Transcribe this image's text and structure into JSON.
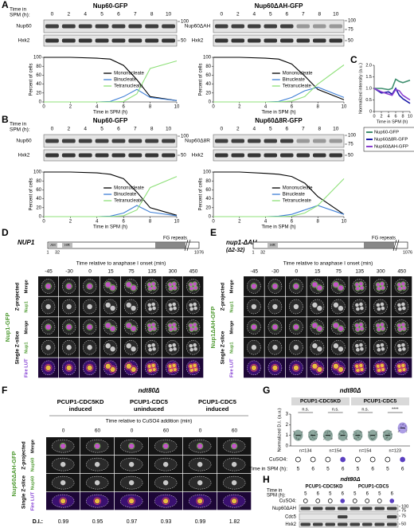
{
  "panels": {
    "A": {
      "label": "A",
      "time_label": [
        "Time in",
        "SPM (h):"
      ],
      "blots": [
        {
          "title": "Nup60-GFP",
          "times": [
            "0",
            "2",
            "4",
            "5",
            "6",
            "7",
            "8",
            "10"
          ],
          "rows": [
            "Nup60",
            "Hxk2"
          ],
          "markers": [
            "100",
            "50"
          ]
        },
        {
          "title": "Nup60ΔAH-GFP",
          "times": [
            "0",
            "2",
            "4",
            "5",
            "6",
            "7",
            "8",
            "10"
          ],
          "rows": [
            "Nup60ΔAH",
            "Hxk2"
          ],
          "markers": [
            "100",
            "75",
            "50"
          ]
        }
      ]
    },
    "B": {
      "label": "B",
      "time_label": [
        "Time in",
        "SPM (h):"
      ],
      "blots": [
        {
          "title": "Nup60-GFP",
          "times": [
            "0",
            "2",
            "4",
            "5",
            "6",
            "7",
            "8",
            "10"
          ],
          "rows": [
            "Nup60",
            "Hxk2"
          ],
          "markers": [
            "100",
            "50"
          ]
        },
        {
          "title": "Nup60Δ8R-GFP",
          "times": [
            "0",
            "2",
            "4",
            "5",
            "6",
            "7",
            "8",
            "10"
          ],
          "rows": [
            "Nup60Δ8R",
            "Hxk2"
          ],
          "markers": [
            "100",
            "75",
            "50"
          ]
        }
      ]
    },
    "C": {
      "label": "C"
    },
    "D": {
      "label": "D",
      "gene": "NUP1",
      "domains": [
        "AH",
        "HR"
      ],
      "fg": "FG repeats",
      "positions": [
        "1",
        "32",
        "1076"
      ],
      "time_axis": "Time relative to anaphase I onset (min)",
      "times": [
        "-45",
        "-30",
        "0",
        "15",
        "75",
        "135",
        "300",
        "450"
      ],
      "protein": "Nup1-GFP",
      "groups": [
        "Z-projected",
        "Single Z-slice"
      ],
      "channels": [
        "Merge",
        "Nup1",
        "Merge",
        "Nup1",
        "Fire LUT"
      ]
    },
    "E": {
      "label": "E",
      "gene": "nup1-ΔAH",
      "deletion": "(Δ2-32)",
      "domains": [
        "HR"
      ],
      "fg": "FG repeats",
      "positions": [
        "1",
        "32",
        "1076"
      ],
      "time_axis": "Time relative to anaphase I onset (min)",
      "times": [
        "-45",
        "-30",
        "0",
        "15",
        "75",
        "135",
        "300",
        "450"
      ],
      "protein": "Nup1ΔAH-GFP",
      "groups": [
        "Z-projected",
        "Single Z-slice"
      ],
      "channels": [
        "Merge",
        "Nup1",
        "Merge",
        "Nup1",
        "Fire LUT"
      ]
    },
    "F": {
      "label": "F",
      "strain": "ndt80Δ",
      "conditions": [
        [
          "PCUP1-CDC5KD",
          "induced"
        ],
        [
          "PCUP1-CDC5",
          "uninduced"
        ],
        [
          "PCUP1-CDC5",
          "induced"
        ]
      ],
      "time_axis": "Time relative to CuSO4 addition (min)",
      "times": [
        "0",
        "60",
        "0",
        "60",
        "0",
        "60"
      ],
      "protein": "Nup60ΔAH-GFP",
      "groups": [
        "Z-projected",
        "Single Z-slice"
      ],
      "channels": [
        "Merge",
        "Nup60",
        "Nup60",
        "Fire LUT"
      ],
      "di_label": "D.I.:",
      "di": [
        "0.99",
        "0.95",
        "0.97",
        "0.93",
        "0.99",
        "1.82"
      ]
    },
    "G": {
      "label": "G",
      "strain": "ndt80Δ",
      "groups": [
        "PCUP1-CDC5KD",
        "PCUP1-CDC5"
      ],
      "significance": [
        "n.s.",
        "n.s.",
        "n.s.",
        "****"
      ],
      "n": [
        "n=134",
        "n=154",
        "n=154",
        "n=123"
      ],
      "cuso4_label": "CuSO4:",
      "cuso4": [
        false,
        false,
        false,
        true,
        false,
        false,
        false,
        true
      ],
      "time_label": "Time in SPM (h):",
      "times": [
        "5",
        "6",
        "5",
        "6",
        "5",
        "6",
        "5",
        "6"
      ]
    },
    "H": {
      "label": "H",
      "strain": "ndt80Δ",
      "groups": [
        "PCUP1-CDC5KD",
        "PCUP1-CDC5"
      ],
      "time_label": [
        "Time in",
        "SPM (h):"
      ],
      "times": [
        "5",
        "6",
        "5",
        "6",
        "5",
        "6",
        "5",
        "6"
      ],
      "cuso4_label": "CuSO4:",
      "cuso4": [
        false,
        false,
        false,
        true,
        false,
        false,
        false,
        true
      ],
      "rows": [
        "Nup60ΔAH",
        "Cdc5",
        "Hxk2"
      ],
      "markers": [
        "100",
        "75",
        "75",
        "50"
      ]
    }
  },
  "chart_data": [
    {
      "type": "line",
      "x": [
        0,
        2,
        4,
        5,
        6,
        7,
        8,
        10
      ],
      "xlim": [
        0,
        10
      ],
      "xticks": [
        0,
        2,
        4,
        6,
        8,
        10
      ],
      "ylim": [
        0,
        100
      ],
      "yticks": [
        0,
        20,
        40,
        60,
        80,
        100
      ],
      "xlabel": "Time in SPM (h)",
      "ylabel": "Percent of cells",
      "series": [
        {
          "name": "Mononucleate",
          "color": "#000000",
          "values": [
            100,
            100,
            98,
            96,
            82,
            50,
            12,
            3
          ]
        },
        {
          "name": "Binucleate",
          "color": "#3f7fd6",
          "values": [
            0,
            0,
            0,
            1,
            12,
            28,
            10,
            3
          ]
        },
        {
          "name": "Tetranucleate",
          "color": "#8fe07a",
          "values": [
            0,
            0,
            0,
            0,
            1,
            18,
            75,
            92
          ]
        }
      ]
    },
    {
      "type": "line",
      "x": [
        0,
        2,
        4,
        5,
        6,
        7,
        8,
        10
      ],
      "xlim": [
        0,
        10
      ],
      "xticks": [
        0,
        2,
        4,
        6,
        8,
        10
      ],
      "ylim": [
        0,
        100
      ],
      "yticks": [
        0,
        20,
        40,
        60,
        80,
        100
      ],
      "xlabel": "Time in SPM (h)",
      "ylabel": "Percent of cells",
      "series": [
        {
          "name": "Mononucleate",
          "color": "#000000",
          "values": [
            100,
            100,
            98,
            96,
            85,
            58,
            28,
            5
          ]
        },
        {
          "name": "Binucleate",
          "color": "#3f7fd6",
          "values": [
            0,
            0,
            0,
            1,
            10,
            25,
            33,
            10
          ]
        },
        {
          "name": "Tetranucleate",
          "color": "#8fe07a",
          "values": [
            0,
            0,
            0,
            0,
            2,
            12,
            40,
            83
          ]
        }
      ]
    },
    {
      "type": "line",
      "x": [
        0,
        2,
        4,
        5,
        6,
        7,
        8,
        10
      ],
      "xlim": [
        0,
        10
      ],
      "xticks": [
        0,
        2,
        4,
        6,
        8,
        10
      ],
      "ylim": [
        0,
        100
      ],
      "yticks": [
        0,
        20,
        40,
        60,
        80,
        100
      ],
      "xlabel": "Time in SPM (h)",
      "ylabel": "Percent of cells",
      "series": [
        {
          "name": "Mononucleate",
          "color": "#000000",
          "values": [
            100,
            100,
            98,
            95,
            85,
            55,
            20,
            3
          ]
        },
        {
          "name": "Binucleate",
          "color": "#3f7fd6",
          "values": [
            0,
            0,
            0,
            1,
            8,
            25,
            10,
            2
          ]
        },
        {
          "name": "Tetranucleate",
          "color": "#8fe07a",
          "values": [
            0,
            0,
            0,
            0,
            2,
            15,
            65,
            90
          ]
        }
      ]
    },
    {
      "type": "line",
      "x": [
        0,
        2,
        4,
        5,
        6,
        7,
        8,
        10
      ],
      "xlim": [
        0,
        10
      ],
      "xticks": [
        0,
        2,
        4,
        6,
        8,
        10
      ],
      "ylim": [
        0,
        100
      ],
      "yticks": [
        0,
        20,
        40,
        60,
        80,
        100
      ],
      "xlabel": "Time in SPM (h)",
      "ylabel": "Percent of cells",
      "series": [
        {
          "name": "Mononucleate",
          "color": "#000000",
          "values": [
            100,
            100,
            97,
            95,
            90,
            75,
            45,
            5
          ]
        },
        {
          "name": "Binucleate",
          "color": "#3f7fd6",
          "values": [
            0,
            0,
            0,
            1,
            5,
            15,
            25,
            5
          ]
        },
        {
          "name": "Tetranucleate",
          "color": "#8fe07a",
          "values": [
            0,
            0,
            0,
            0,
            1,
            8,
            25,
            85
          ]
        }
      ]
    },
    {
      "type": "line",
      "x": [
        0,
        2,
        4,
        5,
        6,
        7,
        8,
        10
      ],
      "xlim": [
        0,
        10
      ],
      "xticks": [
        0,
        2,
        4,
        6,
        8,
        10
      ],
      "ylim": [
        0,
        2
      ],
      "yticks": [
        0,
        0.5,
        {
          "value": 1,
          "label": "1.0"
        },
        1.5,
        {
          "value": 2,
          "label": "2.0"
        }
      ],
      "xlabel": "Time in SPM (h)",
      "ylabel": "Normalized intensity (a.u.)",
      "legend": "below",
      "series": [
        {
          "name": "Nup60-GFP",
          "color": "#3f8f6f",
          "values": [
            1.0,
            1.0,
            0.95,
            1.0,
            1.4,
            1.3,
            1.25,
            1.35
          ]
        },
        {
          "name": "Nup60Δ8R-GFP",
          "color": "#1a1aa8",
          "values": [
            1.0,
            0.8,
            0.85,
            0.75,
            1.0,
            0.7,
            0.55,
            0.35
          ]
        },
        {
          "name": "Nup60ΔAH-GFP",
          "color": "#8a3fd0",
          "values": [
            1.0,
            0.85,
            0.75,
            0.7,
            0.95,
            0.9,
            0.7,
            0.5
          ]
        }
      ]
    },
    {
      "type": "strip",
      "values": [
        1.0,
        1.0,
        1.0,
        1.0,
        1.0,
        1.0,
        1.0,
        1.7
      ],
      "ylim": [
        0,
        3
      ],
      "yticks": [
        0,
        1,
        2,
        3
      ],
      "ylabel": "Normalized D.I. (a.u.)",
      "color": "#2f5f4f",
      "highlight": "#6a4fd0"
    }
  ]
}
